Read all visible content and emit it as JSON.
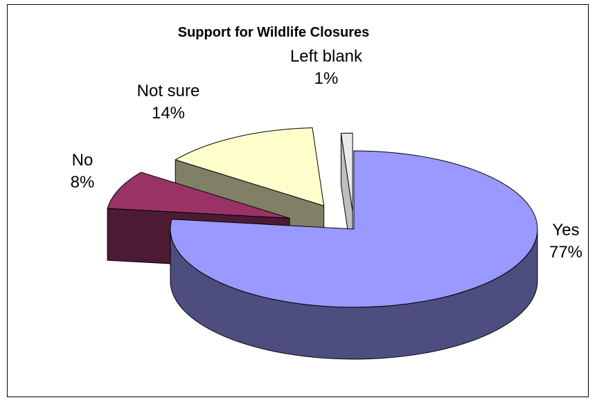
{
  "chart_data": {
    "type": "pie",
    "title": "Support for Wildlife Closures",
    "three_d": true,
    "exploded": true,
    "slices": [
      {
        "label": "Yes",
        "value": 77,
        "value_label": "77%",
        "top_color": "#9999FF",
        "side_color": "#4D4D80"
      },
      {
        "label": "No",
        "value": 8,
        "value_label": "8%",
        "top_color": "#993366",
        "side_color": "#4D1A33"
      },
      {
        "label": "Not sure",
        "value": 14,
        "value_label": "14%",
        "top_color": "#FFFFCC",
        "side_color": "#808066"
      },
      {
        "label": "Left blank",
        "value": 1,
        "value_label": "1%",
        "top_color": "#EAEAEA",
        "side_color": "#BFBFBF"
      }
    ]
  }
}
